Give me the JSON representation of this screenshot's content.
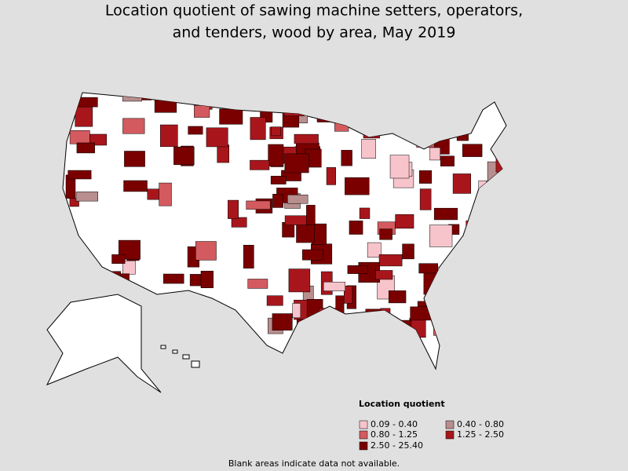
{
  "title": [
    "Location quotient of sawing machine setters, operators,",
    "and tenders, wood by area, May 2019"
  ],
  "legend": {
    "title": "Location quotient",
    "items": [
      {
        "label": "0.09 - 0.40",
        "color": "#f7c4cc"
      },
      {
        "label": "0.40 - 0.80",
        "color": "#b88e8e"
      },
      {
        "label": "0.80 - 1.25",
        "color": "#d35a5e"
      },
      {
        "label": "1.25 - 2.50",
        "color": "#a8161c"
      },
      {
        "label": "2.50 - 25.40",
        "color": "#7a0000"
      }
    ]
  },
  "footnote": "Blank areas indicate data not available."
}
